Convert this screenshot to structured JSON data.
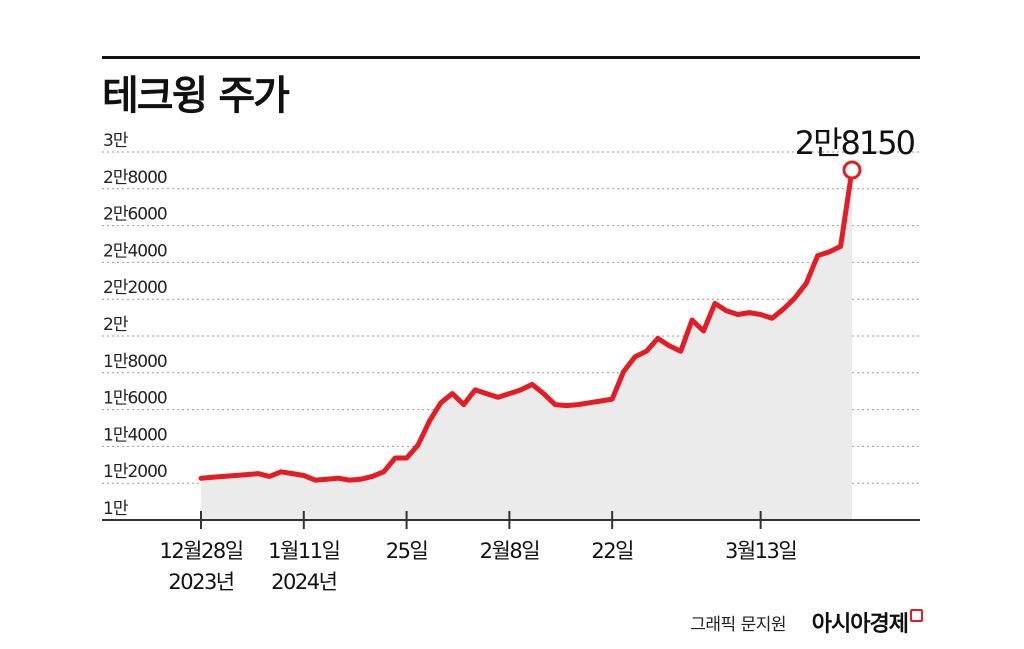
{
  "title": "테크윙 주가",
  "credit": {
    "graphic": "그래픽 문지원",
    "brand": "아시아경제"
  },
  "colors": {
    "line": "#e51c23",
    "area": "#ebebeb",
    "grid": "#999999",
    "axis": "#333333"
  },
  "chart_data": {
    "type": "line",
    "title": "테크윙 주가",
    "xlabel": "",
    "ylabel": "",
    "ylim": [
      10000,
      30000
    ],
    "y_ticks": [
      {
        "value": 10000,
        "label": "1만"
      },
      {
        "value": 12000,
        "label": "1만2000"
      },
      {
        "value": 14000,
        "label": "1만4000"
      },
      {
        "value": 16000,
        "label": "1만6000"
      },
      {
        "value": 18000,
        "label": "1만8000"
      },
      {
        "value": 20000,
        "label": "2만"
      },
      {
        "value": 22000,
        "label": "2만2000"
      },
      {
        "value": 24000,
        "label": "2만4000"
      },
      {
        "value": 26000,
        "label": "2만6000"
      },
      {
        "value": 28000,
        "label": "2만8000"
      },
      {
        "value": 30000,
        "label": "3만"
      }
    ],
    "x_ticks": [
      {
        "index": 0,
        "lines": [
          "12월28일",
          "2023년"
        ]
      },
      {
        "index": 9,
        "lines": [
          "1월11일",
          "2024년"
        ]
      },
      {
        "index": 18,
        "lines": [
          "25일"
        ]
      },
      {
        "index": 27,
        "lines": [
          "2월8일"
        ]
      },
      {
        "index": 36,
        "lines": [
          "22일"
        ]
      },
      {
        "index": 49,
        "lines": [
          "3월13일"
        ]
      }
    ],
    "series": [
      {
        "values": [
          11400,
          11450,
          11500,
          11550,
          11600,
          11650,
          11500,
          11750,
          11650,
          11550,
          11300,
          11350,
          11400,
          11300,
          11350,
          11500,
          11750,
          12500,
          12500,
          13200,
          14500,
          15500,
          16000,
          15400,
          16200,
          16000,
          15800,
          16000,
          16200,
          16500,
          16000,
          15400,
          15350,
          15400,
          15500,
          15600,
          15700,
          17200,
          18000,
          18300,
          19000,
          18600,
          18300,
          20000,
          19400,
          20900,
          20500,
          20300,
          20400,
          20300,
          20100,
          20600,
          21200,
          22000,
          23500,
          23700,
          24000,
          28150
        ]
      }
    ],
    "last_value_label": "2만8150"
  }
}
